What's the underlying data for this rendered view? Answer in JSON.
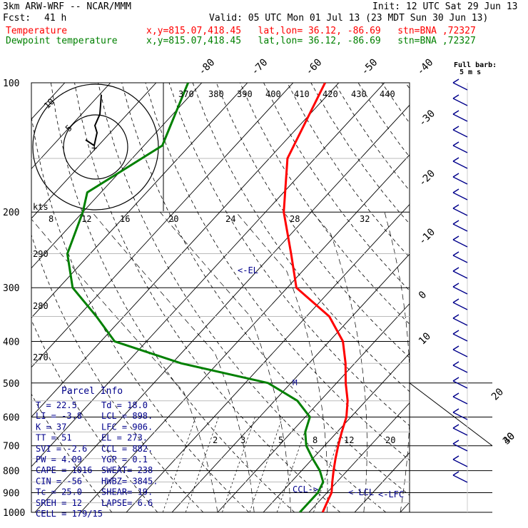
{
  "header": {
    "model": "3km ARW-WRF -- NCAR/MMM",
    "init": "Init: 12 UTC Sat 29 Jun 13",
    "fcst_label": "Fcst:",
    "fcst_value": "41 h",
    "valid": "Valid: 05 UTC Mon 01 Jul 13 (23 MDT Sun 30 Jun 13)",
    "temp_label": "Temperature",
    "temp_loc": "x,y=815.07,418.45   lat,lon= 36.12, -86.69   stn=BNA ,72327",
    "dew_label": "Dewpoint temperature",
    "dew_loc": "x,y=815.07,418.45   lat,lon= 36.12, -86.69   stn=BNA ,72327"
  },
  "colors": {
    "temperature": "#ff0000",
    "dewpoint": "#008000",
    "wind": "#00008b",
    "annotation": "#00008b"
  },
  "chart_data": {
    "type": "line",
    "pressure_levels": [
      "100",
      "200",
      "300",
      "400",
      "500",
      "600",
      "700",
      "800",
      "900",
      "1000"
    ],
    "top_temp_ticks": [
      "-80",
      "-70",
      "-60",
      "-50",
      "-40"
    ],
    "right_temp_ticks": [
      "-30",
      "-20",
      "-10",
      "0",
      "10",
      "20",
      "30",
      "40"
    ],
    "theta_labels": [
      "370",
      "380",
      "390",
      "400",
      "410",
      "420",
      "430",
      "440"
    ],
    "speed_labels": [
      "8",
      "12",
      "16",
      "20",
      "24",
      "28",
      "32"
    ],
    "speed_unit": "kts",
    "left_labels": [
      "290",
      "280",
      "270"
    ],
    "mixing_labels": [
      "2",
      "3",
      "5",
      "8",
      "12",
      "20"
    ],
    "hodo_labels": [
      "5",
      "10"
    ],
    "barb_legend": [
      "Full barb:",
      "5 m s"
    ],
    "annotations": {
      "el": "<-EL",
      "ccl": "CCL->",
      "lcl": "<-LCL",
      "lfc": "<-LFC",
      "m": "M"
    },
    "temperature": [
      [
        100,
        -63
      ],
      [
        150,
        -56
      ],
      [
        200,
        -46
      ],
      [
        250,
        -36
      ],
      [
        300,
        -28
      ],
      [
        350,
        -15
      ],
      [
        400,
        -7
      ],
      [
        450,
        -2
      ],
      [
        500,
        2
      ],
      [
        550,
        6
      ],
      [
        600,
        9
      ],
      [
        650,
        11
      ],
      [
        700,
        13
      ],
      [
        750,
        15
      ],
      [
        800,
        17
      ],
      [
        850,
        19
      ],
      [
        900,
        21
      ],
      [
        950,
        22
      ],
      [
        1000,
        23
      ]
    ],
    "dewpoint": [
      [
        100,
        -93
      ],
      [
        140,
        -86
      ],
      [
        180,
        -93
      ],
      [
        200,
        -90
      ],
      [
        250,
        -85
      ],
      [
        300,
        -77
      ],
      [
        350,
        -66
      ],
      [
        400,
        -57
      ],
      [
        450,
        -38
      ],
      [
        500,
        -15
      ],
      [
        550,
        -5
      ],
      [
        600,
        1
      ],
      [
        650,
        3
      ],
      [
        700,
        6
      ],
      [
        750,
        10
      ],
      [
        800,
        14
      ],
      [
        850,
        17
      ],
      [
        900,
        18
      ],
      [
        950,
        18
      ],
      [
        1000,
        18
      ]
    ]
  },
  "parcel": {
    "title": "Parcel Info",
    "rows": [
      [
        "T    =    22.5",
        "Td  =   18.0"
      ],
      [
        "LI   =    -3.8",
        "LCL =   898."
      ],
      [
        "K    =      37",
        "LFC =   906."
      ],
      [
        "TT   =      51",
        "EL  =   273."
      ],
      [
        "SVI  =    -2.6",
        "CCL =   882."
      ],
      [
        "PW   =    4.09",
        "YGP =    0.1"
      ],
      [
        "CAPE =    1016",
        "SWEAT=   238"
      ],
      [
        "CIN  =     -56",
        "HWBZ=  3845."
      ],
      [
        "Tc   =    25.0",
        "SHEAR=   19."
      ],
      [
        "SREH =      12",
        "LAPSE=    6.6"
      ],
      [
        "CELL = 179/15",
        ""
      ]
    ]
  }
}
